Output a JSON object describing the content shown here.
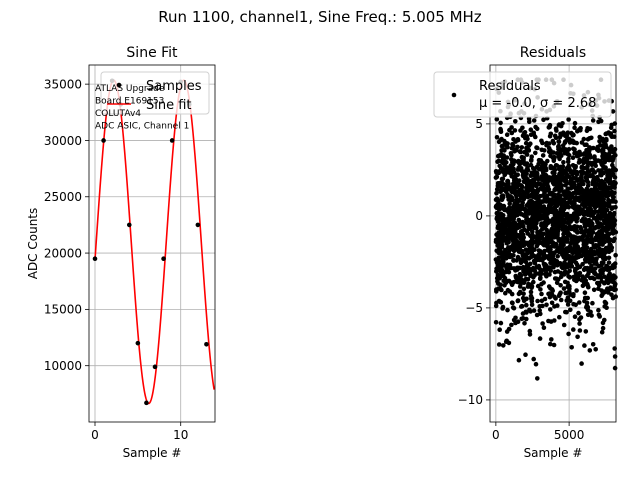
{
  "figure": {
    "suptitle": "Run 1100, channel1, Sine Freq.: 5.005 MHz"
  },
  "chart_data": [
    {
      "type": "scatter",
      "title": "Sine Fit",
      "xlabel": "Sample #",
      "ylabel": "ADC Counts",
      "xlim": [
        -0.7,
        14.0
      ],
      "ylim": [
        5000,
        36700
      ],
      "xticks": [
        0,
        10
      ],
      "yticks": [
        10000,
        15000,
        20000,
        25000,
        30000,
        35000
      ],
      "grid": true,
      "legend_position": "upper-right",
      "legend": [
        {
          "label": "Samples",
          "marker": "dot",
          "color": "#000000"
        },
        {
          "label": "Sine fit",
          "marker": "line",
          "color": "#ff0000"
        }
      ],
      "annotation": [
        "ATLAS Upgrade",
        " Board E169153",
        "COLUTAv4",
        "ADC ASIC, Channel 1"
      ],
      "series": [
        {
          "name": "Samples",
          "kind": "points",
          "color": "#000000",
          "x": [
            0,
            1,
            2,
            3,
            4,
            5,
            6,
            7,
            8,
            9,
            10,
            11,
            12,
            13
          ],
          "y": [
            19500,
            30000,
            35300,
            33200,
            22500,
            12000,
            6700,
            9900,
            19500,
            30000,
            35200,
            33200,
            22500,
            11900
          ]
        },
        {
          "name": "Sine fit",
          "kind": "line",
          "color": "#ff0000",
          "function": "sine",
          "x_range": [
            0,
            13.9
          ],
          "offset": 21000,
          "amplitude": 14350,
          "period": 8.17,
          "phase_at_zero": -0.11
        }
      ]
    },
    {
      "type": "scatter",
      "title": "Residuals",
      "xlabel": "Sample #",
      "ylabel": "",
      "xlim": [
        -400,
        8200
      ],
      "ylim": [
        -11.2,
        8.2
      ],
      "xticks": [
        0,
        5000
      ],
      "yticks": [
        -10,
        -5,
        0,
        5
      ],
      "grid": true,
      "legend_position": "upper-right",
      "legend": [
        {
          "label": "Residuals",
          "marker": "dot",
          "color": "#000000"
        },
        {
          "label": "μ = -0.0, σ = 2.68",
          "marker": "none",
          "color": "#000000"
        }
      ],
      "series": [
        {
          "name": "Residuals",
          "color": "#000000",
          "distribution": "normal",
          "mean": 0.0,
          "std": 2.68,
          "count": 8192,
          "x_range": [
            0,
            8191
          ],
          "min": -10.0,
          "max": 7.4
        }
      ]
    }
  ]
}
